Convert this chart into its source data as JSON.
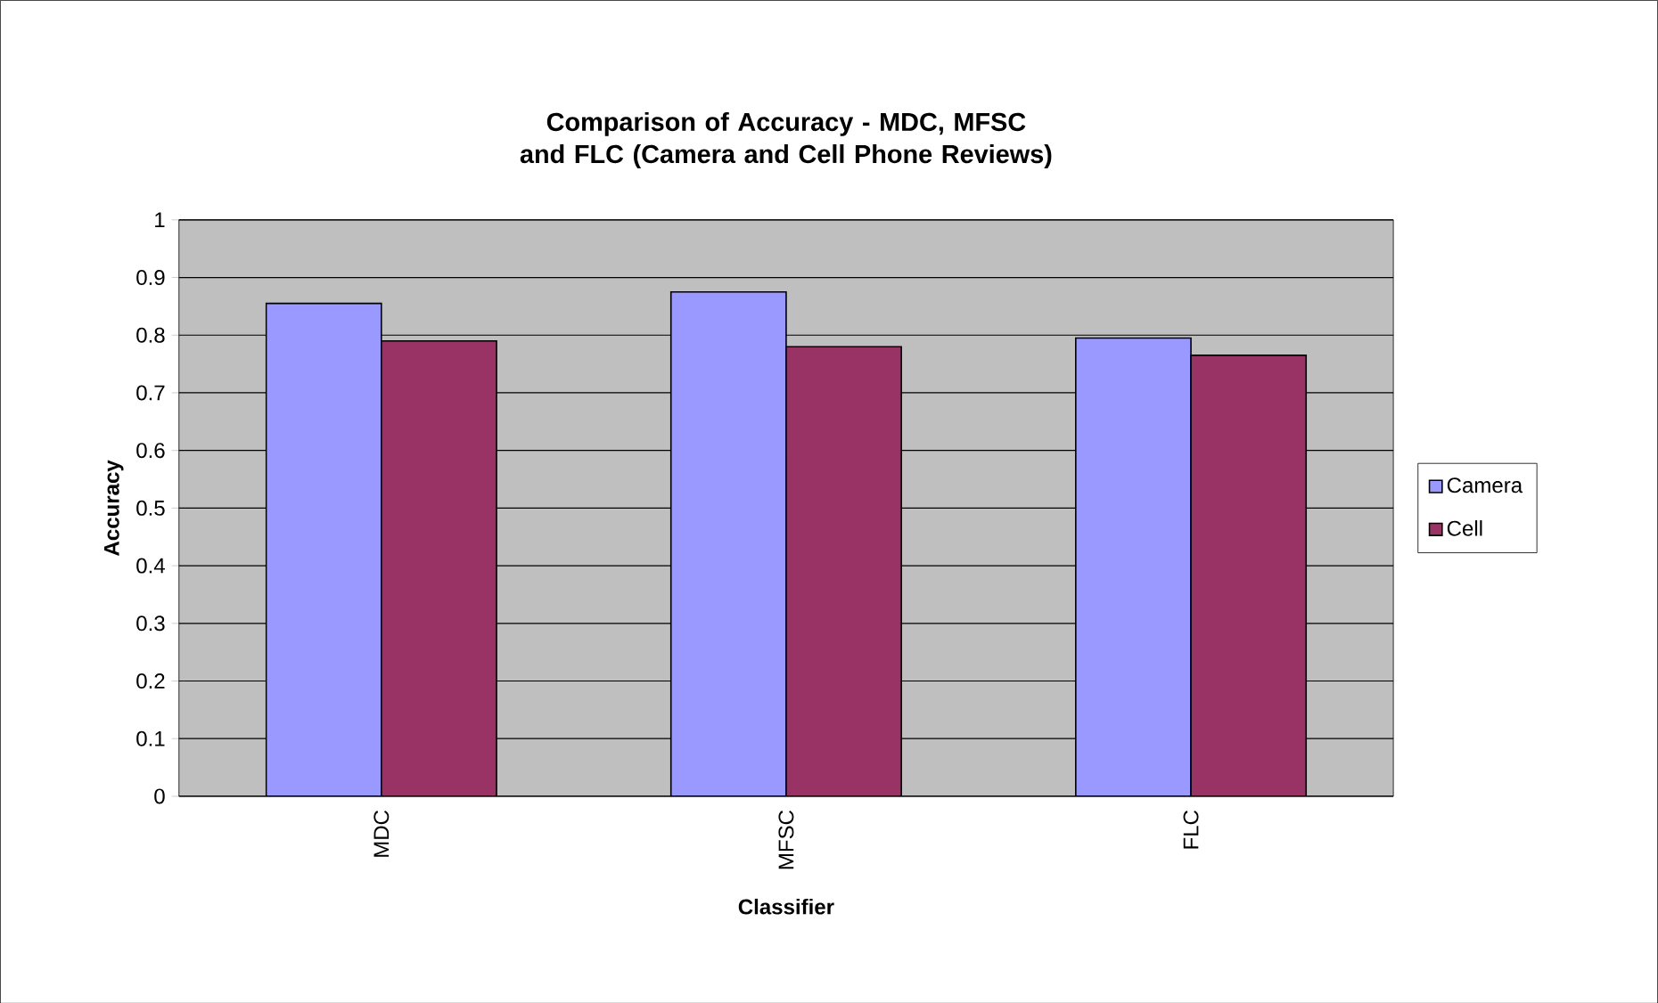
{
  "chart_data": {
    "type": "bar",
    "title": "Comparison of Accuracy - MDC, MFSC and FLC (Camera and Cell Phone Reviews)",
    "xlabel": "Classifier",
    "ylabel": "Accuracy",
    "categories": [
      "MDC",
      "MFSC",
      "FLC"
    ],
    "series": [
      {
        "name": "Camera",
        "color": "#9999ff",
        "values": [
          0.855,
          0.875,
          0.795
        ]
      },
      {
        "name": "Cell",
        "color": "#993366",
        "values": [
          0.79,
          0.78,
          0.765
        ]
      }
    ],
    "ylim": [
      0,
      1
    ],
    "yticks": [
      0,
      0.1,
      0.2,
      0.3,
      0.4,
      0.5,
      0.6,
      0.7,
      0.8,
      0.9,
      1
    ],
    "grid": "y",
    "legend": "right"
  }
}
